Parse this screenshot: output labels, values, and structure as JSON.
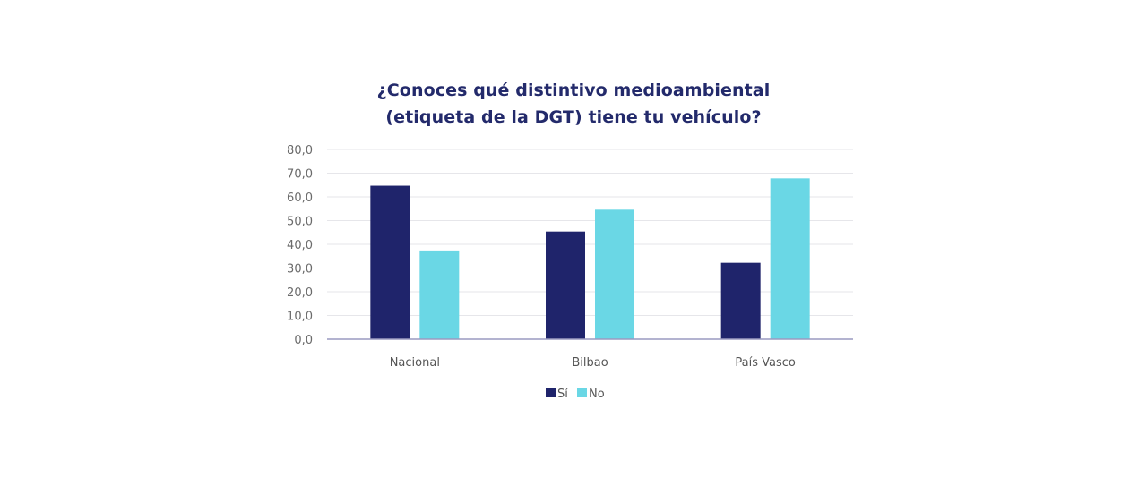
{
  "chart_data": {
    "type": "bar",
    "title_lines": [
      "¿Conoces qué distintivo medioambiental",
      "(etiqueta de la DGT) tiene tu vehículo?"
    ],
    "categories": [
      "Nacional",
      "Bilbao",
      "País Vasco"
    ],
    "series": [
      {
        "name": "Sí",
        "color": "#1f246b",
        "values": [
          64.7,
          45.4,
          32.2
        ]
      },
      {
        "name": "No",
        "color": "#6ad7e5",
        "values": [
          37.4,
          54.6,
          67.8
        ]
      }
    ],
    "ylim": [
      0,
      80
    ],
    "yticks": [
      0,
      10,
      20,
      30,
      40,
      50,
      60,
      70,
      80
    ],
    "ytick_labels": [
      "0,0",
      "10,0",
      "20,0",
      "30,0",
      "40,0",
      "50,0",
      "60,0",
      "70,0",
      "80,0"
    ],
    "xlabel": "",
    "ylabel": "",
    "grid": true,
    "legend_position": "bottom-center",
    "colors": {
      "title": "#232a6b",
      "grid": "#e6e6ea",
      "axis": "#9a9ac0"
    }
  }
}
